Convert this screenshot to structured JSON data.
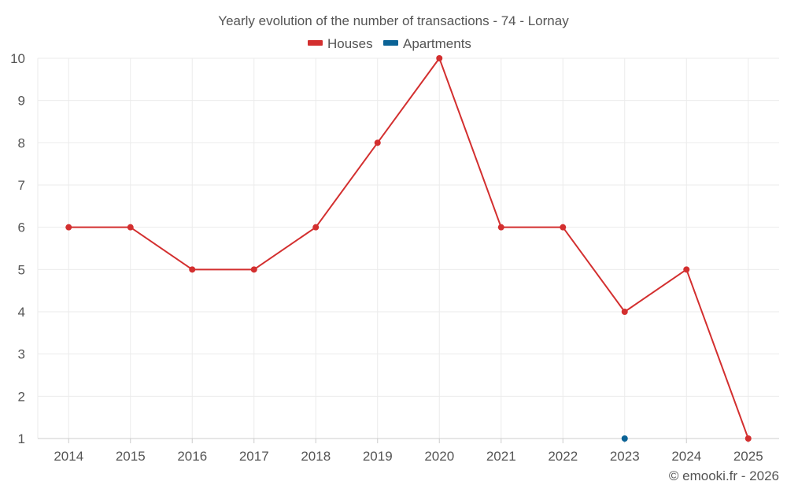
{
  "chart_data": {
    "type": "line",
    "title": "Yearly evolution of the number of transactions - 74 - Lornay",
    "xlabel": "",
    "ylabel": "",
    "categories": [
      "2014",
      "2015",
      "2016",
      "2017",
      "2018",
      "2019",
      "2020",
      "2021",
      "2022",
      "2023",
      "2024",
      "2025"
    ],
    "y_ticks": [
      1,
      2,
      3,
      4,
      5,
      6,
      7,
      8,
      9,
      10
    ],
    "ylim": [
      1,
      10
    ],
    "grid": true,
    "legend_position": "top-center",
    "series": [
      {
        "name": "Houses",
        "color": "#d32f2f",
        "values": [
          6,
          6,
          5,
          5,
          6,
          8,
          10,
          6,
          6,
          4,
          5,
          1
        ]
      },
      {
        "name": "Apartments",
        "color": "#0b6396",
        "values": [
          null,
          null,
          null,
          null,
          null,
          null,
          null,
          null,
          null,
          1,
          null,
          null
        ]
      }
    ]
  },
  "credit": "© emooki.fr - 2026"
}
